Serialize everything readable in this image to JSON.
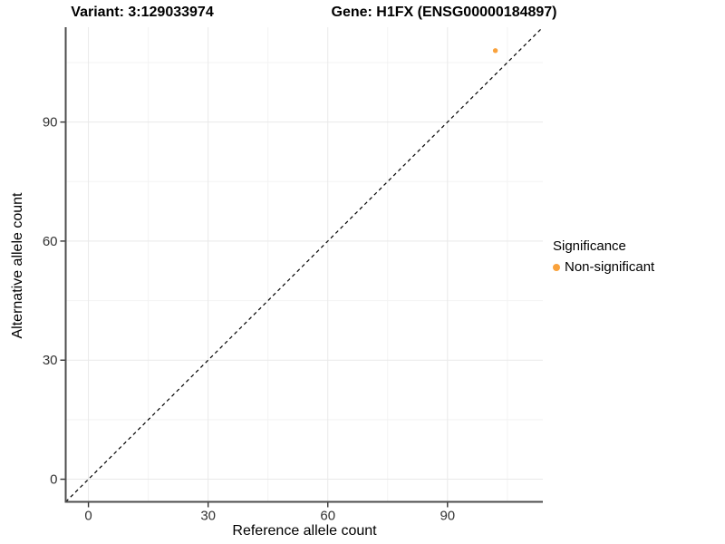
{
  "titles": {
    "variant": "Variant: 3:129033974",
    "gene": "Gene: H1FX (ENSG00000184897)"
  },
  "legend": {
    "title": "Significance",
    "items": [
      {
        "label": "Non-significant",
        "color": "#F9A23C"
      }
    ]
  },
  "colors": {
    "point": "#F9A23C",
    "axis_line": "#4d4d4d",
    "tick_label": "#333333",
    "grid_major": "#e9e9e9",
    "grid_minor": "#f3f3f3",
    "reference_line": "#000000",
    "background": "#ffffff"
  },
  "chart_data": {
    "type": "scatter",
    "title_left": "Variant: 3:129033974",
    "title_right": "Gene: H1FX (ENSG00000184897)",
    "xlabel": "Reference allele count",
    "ylabel": "Alternative allele count",
    "xlim": [
      -5.7,
      113.9
    ],
    "ylim": [
      -5.7,
      113.9
    ],
    "x_ticks": [
      0,
      30,
      60,
      90
    ],
    "y_ticks": [
      0,
      30,
      60,
      90
    ],
    "x_minor_ticks": [
      15,
      45,
      75,
      105
    ],
    "y_minor_ticks": [
      15,
      45,
      75,
      105
    ],
    "grid": true,
    "legend_position": "right",
    "reference_line": {
      "type": "identity",
      "style": "dashed"
    },
    "series": [
      {
        "name": "Non-significant",
        "color": "#F9A23C",
        "points": [
          {
            "x": 102,
            "y": 108
          }
        ]
      }
    ]
  }
}
